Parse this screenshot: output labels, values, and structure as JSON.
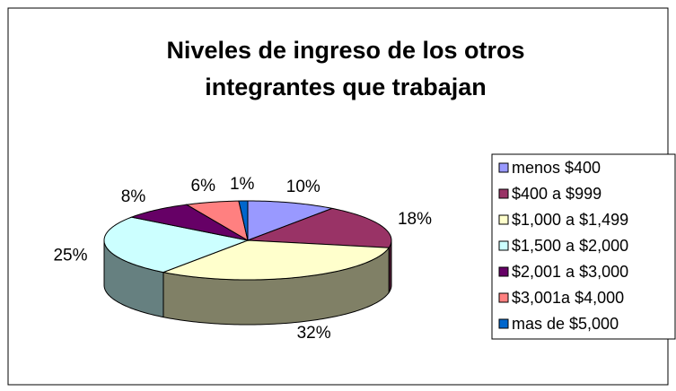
{
  "chart_data": {
    "type": "pie3d",
    "title": [
      "Niveles de ingreso de los otros",
      "integrantes que trabajan"
    ],
    "categories": [
      "menos $400",
      "$400 a $999",
      "$1,000 a $1,499",
      "$1,500 a $2,000",
      "$2,001 a $3,000",
      "$3,001a $4,000",
      "mas de $5,000"
    ],
    "values": [
      10,
      18,
      32,
      25,
      8,
      6,
      1
    ],
    "value_labels": [
      "10%",
      "18%",
      "32%",
      "25%",
      "8%",
      "6%",
      "1%"
    ],
    "colors": [
      "#9999ff",
      "#993366",
      "#ffffcc",
      "#ccffff",
      "#660066",
      "#ff8080",
      "#0066cc"
    ],
    "legend": "right"
  }
}
